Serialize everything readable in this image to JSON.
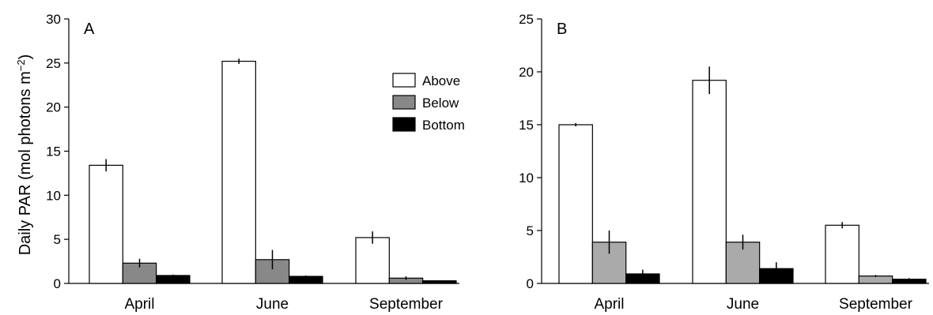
{
  "ylabel": {
    "main": "Daily PAR (mol photons m",
    "sup": "−2",
    "close": ")"
  },
  "legend": [
    {
      "name": "Above",
      "color": "#ffffff"
    },
    {
      "name": "Below",
      "color": "#888888"
    },
    {
      "name": "Bottom",
      "color": "#000000"
    }
  ],
  "chart_data": [
    {
      "type": "bar",
      "panel_label": "A",
      "categories": [
        "April",
        "June",
        "September"
      ],
      "ylim": [
        0,
        30
      ],
      "yticks": [
        0,
        5,
        10,
        15,
        20,
        25,
        30
      ],
      "legend_position": "right, inside plot",
      "series": [
        {
          "name": "Above",
          "color": "#ffffff",
          "values": [
            13.4,
            25.2,
            5.2
          ],
          "errors": [
            0.7,
            0.3,
            0.7
          ]
        },
        {
          "name": "Below",
          "color": "#888888",
          "values": [
            2.3,
            2.7,
            0.6
          ],
          "errors": [
            0.5,
            1.1,
            0.2
          ]
        },
        {
          "name": "Bottom",
          "color": "#000000",
          "values": [
            0.9,
            0.8,
            0.3
          ],
          "errors": [
            0.1,
            0.1,
            0.05
          ]
        }
      ]
    },
    {
      "type": "bar",
      "panel_label": "B",
      "categories": [
        "April",
        "June",
        "September"
      ],
      "ylim": [
        0,
        25
      ],
      "yticks": [
        0,
        5,
        10,
        15,
        20,
        25
      ],
      "series": [
        {
          "name": "Above",
          "color": "#ffffff",
          "values": [
            15.0,
            19.2,
            5.5
          ],
          "errors": [
            0.15,
            1.3,
            0.3
          ]
        },
        {
          "name": "Below",
          "color": "#aaaaaa",
          "values": [
            3.9,
            3.9,
            0.7
          ],
          "errors": [
            1.1,
            0.7,
            0.1
          ]
        },
        {
          "name": "Bottom",
          "color": "#000000",
          "values": [
            0.9,
            1.4,
            0.4
          ],
          "errors": [
            0.4,
            0.6,
            0.1
          ]
        }
      ]
    }
  ]
}
